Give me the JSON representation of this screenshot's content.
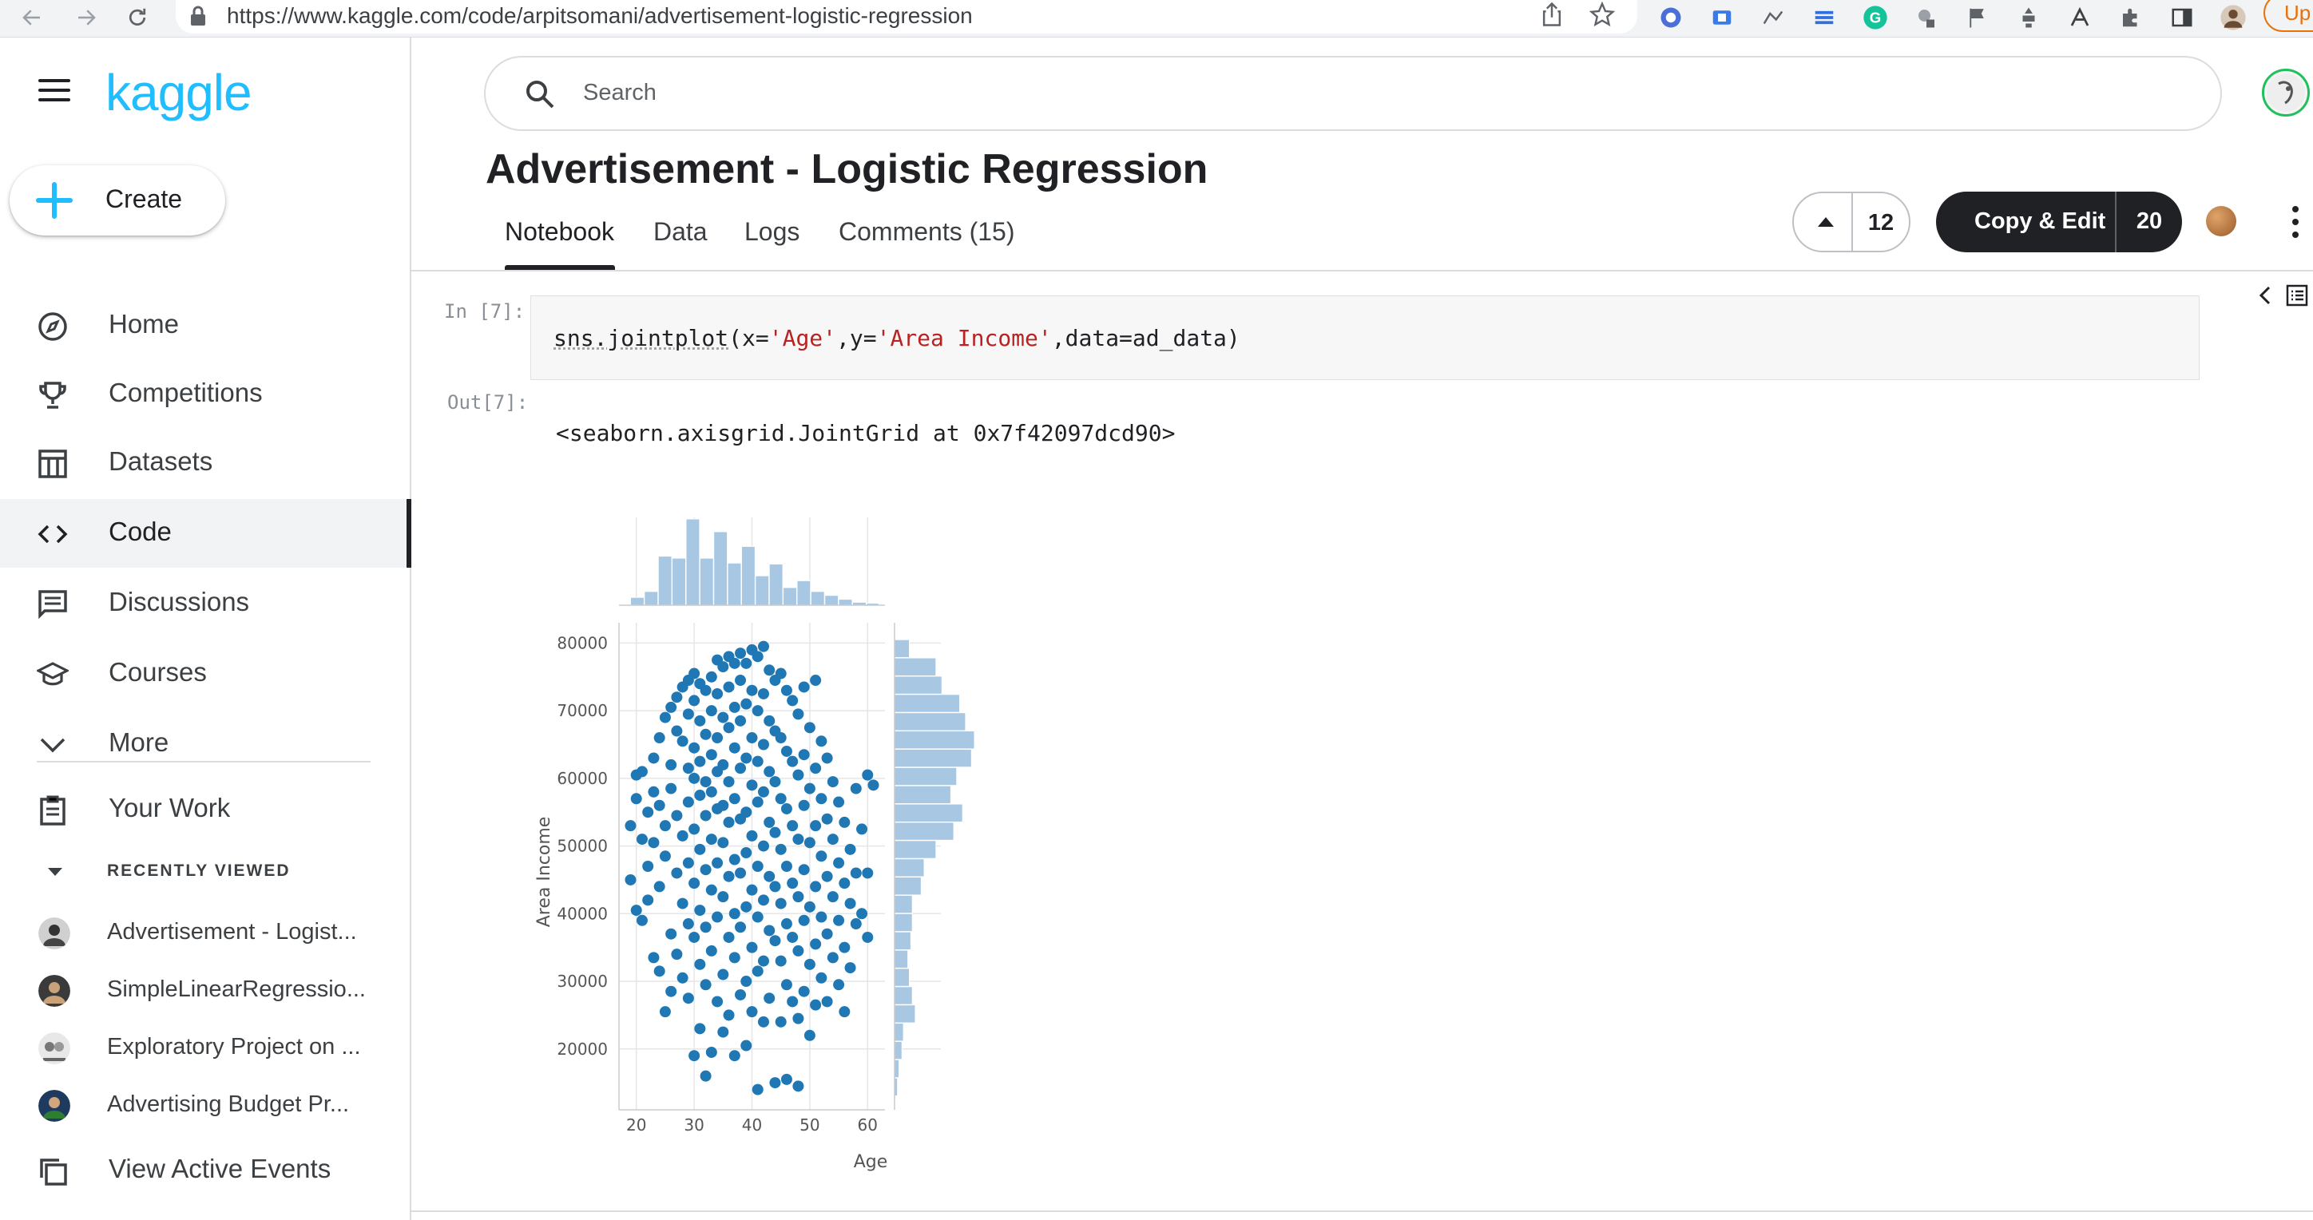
{
  "browser": {
    "url": "https://www.kaggle.com/code/arpitsomani/advertisement-logistic-regression",
    "update_label": "Up"
  },
  "sidebar": {
    "logo": "kaggle",
    "create_label": "Create",
    "items": [
      {
        "label": "Home",
        "icon": "compass-icon"
      },
      {
        "label": "Competitions",
        "icon": "trophy-icon"
      },
      {
        "label": "Datasets",
        "icon": "table-icon"
      },
      {
        "label": "Code",
        "icon": "code-icon",
        "active": true
      },
      {
        "label": "Discussions",
        "icon": "message-icon"
      },
      {
        "label": "Courses",
        "icon": "graduation-cap-icon"
      },
      {
        "label": "More",
        "icon": "chevron-down-icon"
      }
    ],
    "your_work": "Your Work",
    "recently_viewed_header": "RECENTLY VIEWED",
    "recent": [
      "Advertisement - Logist...",
      "SimpleLinearRegressio...",
      "Exploratory Project on ...",
      "Advertising Budget Pr..."
    ],
    "view_active_events": "View Active Events"
  },
  "search": {
    "placeholder": "Search"
  },
  "notebook": {
    "title": "Advertisement - Logistic Regression",
    "tabs": [
      "Notebook",
      "Data",
      "Logs",
      "Comments (15)"
    ],
    "active_tab": "Notebook",
    "upvotes": "12",
    "copy_edit_label": "Copy & Edit",
    "copy_edit_count": "20",
    "in_prompt": "In [7]:",
    "out_prompt": "Out[7]:",
    "code": {
      "fn": "sns.jointplot",
      "open": "(x=",
      "arg1": "'Age'",
      "mid": ",y=",
      "arg2": "'Area Income'",
      "tail": ",data=ad_data)"
    },
    "output_text": "<seaborn.axisgrid.JointGrid at 0x7f42097dcd90>"
  },
  "chart_data": {
    "type": "scatter",
    "title": "",
    "xlabel": "Age",
    "ylabel": "Area Income",
    "xlim": [
      17,
      63
    ],
    "ylim": [
      11000,
      83000
    ],
    "xticks": [
      20,
      30,
      40,
      50,
      60
    ],
    "yticks": [
      20000,
      30000,
      40000,
      50000,
      60000,
      70000,
      80000
    ],
    "grid": true,
    "color": "#1f77b4",
    "hist_color": "#a7c7e3",
    "marginal_x_hist": {
      "bin_edges": [
        19,
        21.4,
        23.8,
        26.2,
        28.6,
        31,
        33.4,
        35.8,
        38.2,
        40.6,
        43,
        45.4,
        47.8,
        50.2,
        52.6,
        55,
        57.4,
        59.8,
        62
      ],
      "counts": [
        8,
        14,
        50,
        48,
        88,
        48,
        75,
        43,
        60,
        30,
        42,
        18,
        25,
        14,
        10,
        6,
        3,
        2
      ]
    },
    "marginal_y_hist": {
      "bin_edges": [
        13000,
        15700,
        18400,
        21100,
        23800,
        26500,
        29200,
        31900,
        34600,
        37300,
        40000,
        42700,
        45400,
        48100,
        50800,
        53500,
        56200,
        58900,
        61600,
        64300,
        67000,
        69700,
        72400,
        75100,
        77800,
        80500
      ],
      "counts": [
        2,
        3,
        5,
        6,
        14,
        12,
        10,
        9,
        11,
        12,
        12,
        18,
        20,
        28,
        40,
        46,
        38,
        42,
        52,
        54,
        48,
        44,
        32,
        28,
        10
      ]
    },
    "points": [
      [
        19,
        53000
      ],
      [
        19,
        45000
      ],
      [
        20,
        60500
      ],
      [
        20,
        40500
      ],
      [
        20,
        57000
      ],
      [
        21,
        61000
      ],
      [
        21,
        39000
      ],
      [
        21,
        51000
      ],
      [
        22,
        55000
      ],
      [
        22,
        47000
      ],
      [
        22,
        42000
      ],
      [
        23,
        58000
      ],
      [
        23,
        63000
      ],
      [
        23,
        33500
      ],
      [
        23,
        50500
      ],
      [
        24,
        66000
      ],
      [
        24,
        56000
      ],
      [
        24,
        31500
      ],
      [
        24,
        44000
      ],
      [
        25,
        69000
      ],
      [
        25,
        53000
      ],
      [
        25,
        48500
      ],
      [
        25,
        25500
      ],
      [
        26,
        70500
      ],
      [
        26,
        62000
      ],
      [
        26,
        58500
      ],
      [
        26,
        37000
      ],
      [
        26,
        28500
      ],
      [
        27,
        72000
      ],
      [
        27,
        67000
      ],
      [
        27,
        54500
      ],
      [
        27,
        46000
      ],
      [
        27,
        34000
      ],
      [
        28,
        73500
      ],
      [
        28,
        65500
      ],
      [
        28,
        51500
      ],
      [
        28,
        41500
      ],
      [
        28,
        30500
      ],
      [
        29,
        74500
      ],
      [
        29,
        69500
      ],
      [
        29,
        61500
      ],
      [
        29,
        56500
      ],
      [
        29,
        47500
      ],
      [
        29,
        38500
      ],
      [
        29,
        27500
      ],
      [
        30,
        75500
      ],
      [
        30,
        71500
      ],
      [
        30,
        64500
      ],
      [
        30,
        60000
      ],
      [
        30,
        52500
      ],
      [
        30,
        44500
      ],
      [
        30,
        36500
      ],
      [
        30,
        19000
      ],
      [
        31,
        74000
      ],
      [
        31,
        68500
      ],
      [
        31,
        62500
      ],
      [
        31,
        57500
      ],
      [
        31,
        49500
      ],
      [
        31,
        40500
      ],
      [
        31,
        32500
      ],
      [
        31,
        23000
      ],
      [
        32,
        73000
      ],
      [
        32,
        66500
      ],
      [
        32,
        59500
      ],
      [
        32,
        54500
      ],
      [
        32,
        46500
      ],
      [
        32,
        38000
      ],
      [
        32,
        29500
      ],
      [
        32,
        16000
      ],
      [
        33,
        75000
      ],
      [
        33,
        70000
      ],
      [
        33,
        63500
      ],
      [
        33,
        58000
      ],
      [
        33,
        51000
      ],
      [
        33,
        43500
      ],
      [
        33,
        34500
      ],
      [
        33,
        19500
      ],
      [
        34,
        77500
      ],
      [
        34,
        72500
      ],
      [
        34,
        66000
      ],
      [
        34,
        61000
      ],
      [
        34,
        55500
      ],
      [
        34,
        47500
      ],
      [
        34,
        39500
      ],
      [
        34,
        27000
      ],
      [
        35,
        76500
      ],
      [
        35,
        69000
      ],
      [
        35,
        62000
      ],
      [
        35,
        56000
      ],
      [
        35,
        50500
      ],
      [
        35,
        42500
      ],
      [
        35,
        31000
      ],
      [
        35,
        22500
      ],
      [
        36,
        78000
      ],
      [
        36,
        73500
      ],
      [
        36,
        67500
      ],
      [
        36,
        59500
      ],
      [
        36,
        53500
      ],
      [
        36,
        45500
      ],
      [
        36,
        36500
      ],
      [
        36,
        25000
      ],
      [
        37,
        77000
      ],
      [
        37,
        70500
      ],
      [
        37,
        64500
      ],
      [
        37,
        57000
      ],
      [
        37,
        48000
      ],
      [
        37,
        40000
      ],
      [
        37,
        33500
      ],
      [
        37,
        19000
      ],
      [
        38,
        78500
      ],
      [
        38,
        74500
      ],
      [
        38,
        68500
      ],
      [
        38,
        61500
      ],
      [
        38,
        54000
      ],
      [
        38,
        46000
      ],
      [
        38,
        38000
      ],
      [
        38,
        28000
      ],
      [
        39,
        77000
      ],
      [
        39,
        71000
      ],
      [
        39,
        63000
      ],
      [
        39,
        55000
      ],
      [
        39,
        49000
      ],
      [
        39,
        41000
      ],
      [
        39,
        30000
      ],
      [
        39,
        20500
      ],
      [
        40,
        79000
      ],
      [
        40,
        73000
      ],
      [
        40,
        66000
      ],
      [
        40,
        59000
      ],
      [
        40,
        51500
      ],
      [
        40,
        43500
      ],
      [
        40,
        35000
      ],
      [
        40,
        25500
      ],
      [
        41,
        78000
      ],
      [
        41,
        70000
      ],
      [
        41,
        62500
      ],
      [
        41,
        56500
      ],
      [
        41,
        47000
      ],
      [
        41,
        39500
      ],
      [
        41,
        31500
      ],
      [
        41,
        14000
      ],
      [
        42,
        79500
      ],
      [
        42,
        72500
      ],
      [
        42,
        65000
      ],
      [
        42,
        58000
      ],
      [
        42,
        50000
      ],
      [
        42,
        42000
      ],
      [
        42,
        33000
      ],
      [
        42,
        24000
      ],
      [
        43,
        76000
      ],
      [
        43,
        68500
      ],
      [
        43,
        61000
      ],
      [
        43,
        53500
      ],
      [
        43,
        45500
      ],
      [
        43,
        37500
      ],
      [
        43,
        27500
      ],
      [
        44,
        74500
      ],
      [
        44,
        67000
      ],
      [
        44,
        59500
      ],
      [
        44,
        52000
      ],
      [
        44,
        44000
      ],
      [
        44,
        36000
      ],
      [
        44,
        15000
      ],
      [
        45,
        75500
      ],
      [
        45,
        66000
      ],
      [
        45,
        57000
      ],
      [
        45,
        49500
      ],
      [
        45,
        41500
      ],
      [
        45,
        33000
      ],
      [
        45,
        24000
      ],
      [
        46,
        73000
      ],
      [
        46,
        64000
      ],
      [
        46,
        55500
      ],
      [
        46,
        47000
      ],
      [
        46,
        38500
      ],
      [
        46,
        29500
      ],
      [
        46,
        15500
      ],
      [
        47,
        71500
      ],
      [
        47,
        62500
      ],
      [
        47,
        53000
      ],
      [
        47,
        44500
      ],
      [
        47,
        36500
      ],
      [
        47,
        27000
      ],
      [
        48,
        69500
      ],
      [
        48,
        60500
      ],
      [
        48,
        51000
      ],
      [
        48,
        42500
      ],
      [
        48,
        34500
      ],
      [
        48,
        24500
      ],
      [
        48,
        14500
      ],
      [
        49,
        73500
      ],
      [
        49,
        63500
      ],
      [
        49,
        56000
      ],
      [
        49,
        46500
      ],
      [
        49,
        39000
      ],
      [
        49,
        28500
      ],
      [
        50,
        67500
      ],
      [
        50,
        58500
      ],
      [
        50,
        50500
      ],
      [
        50,
        41000
      ],
      [
        50,
        32500
      ],
      [
        50,
        22000
      ],
      [
        51,
        74500
      ],
      [
        51,
        61500
      ],
      [
        51,
        53000
      ],
      [
        51,
        44000
      ],
      [
        51,
        35500
      ],
      [
        51,
        26500
      ],
      [
        52,
        65500
      ],
      [
        52,
        57000
      ],
      [
        52,
        48500
      ],
      [
        52,
        39500
      ],
      [
        52,
        30500
      ],
      [
        53,
        63000
      ],
      [
        53,
        54000
      ],
      [
        53,
        45500
      ],
      [
        53,
        37000
      ],
      [
        53,
        27000
      ],
      [
        54,
        59500
      ],
      [
        54,
        51000
      ],
      [
        54,
        42500
      ],
      [
        54,
        33500
      ],
      [
        55,
        56500
      ],
      [
        55,
        47500
      ],
      [
        55,
        39000
      ],
      [
        55,
        29500
      ],
      [
        56,
        53500
      ],
      [
        56,
        44500
      ],
      [
        56,
        35000
      ],
      [
        56,
        25500
      ],
      [
        57,
        49500
      ],
      [
        57,
        41500
      ],
      [
        57,
        32000
      ],
      [
        58,
        58500
      ],
      [
        58,
        46000
      ],
      [
        58,
        38500
      ],
      [
        59,
        52500
      ],
      [
        59,
        40000
      ],
      [
        60,
        60500
      ],
      [
        60,
        46000
      ],
      [
        60,
        36500
      ],
      [
        61,
        59000
      ]
    ]
  }
}
